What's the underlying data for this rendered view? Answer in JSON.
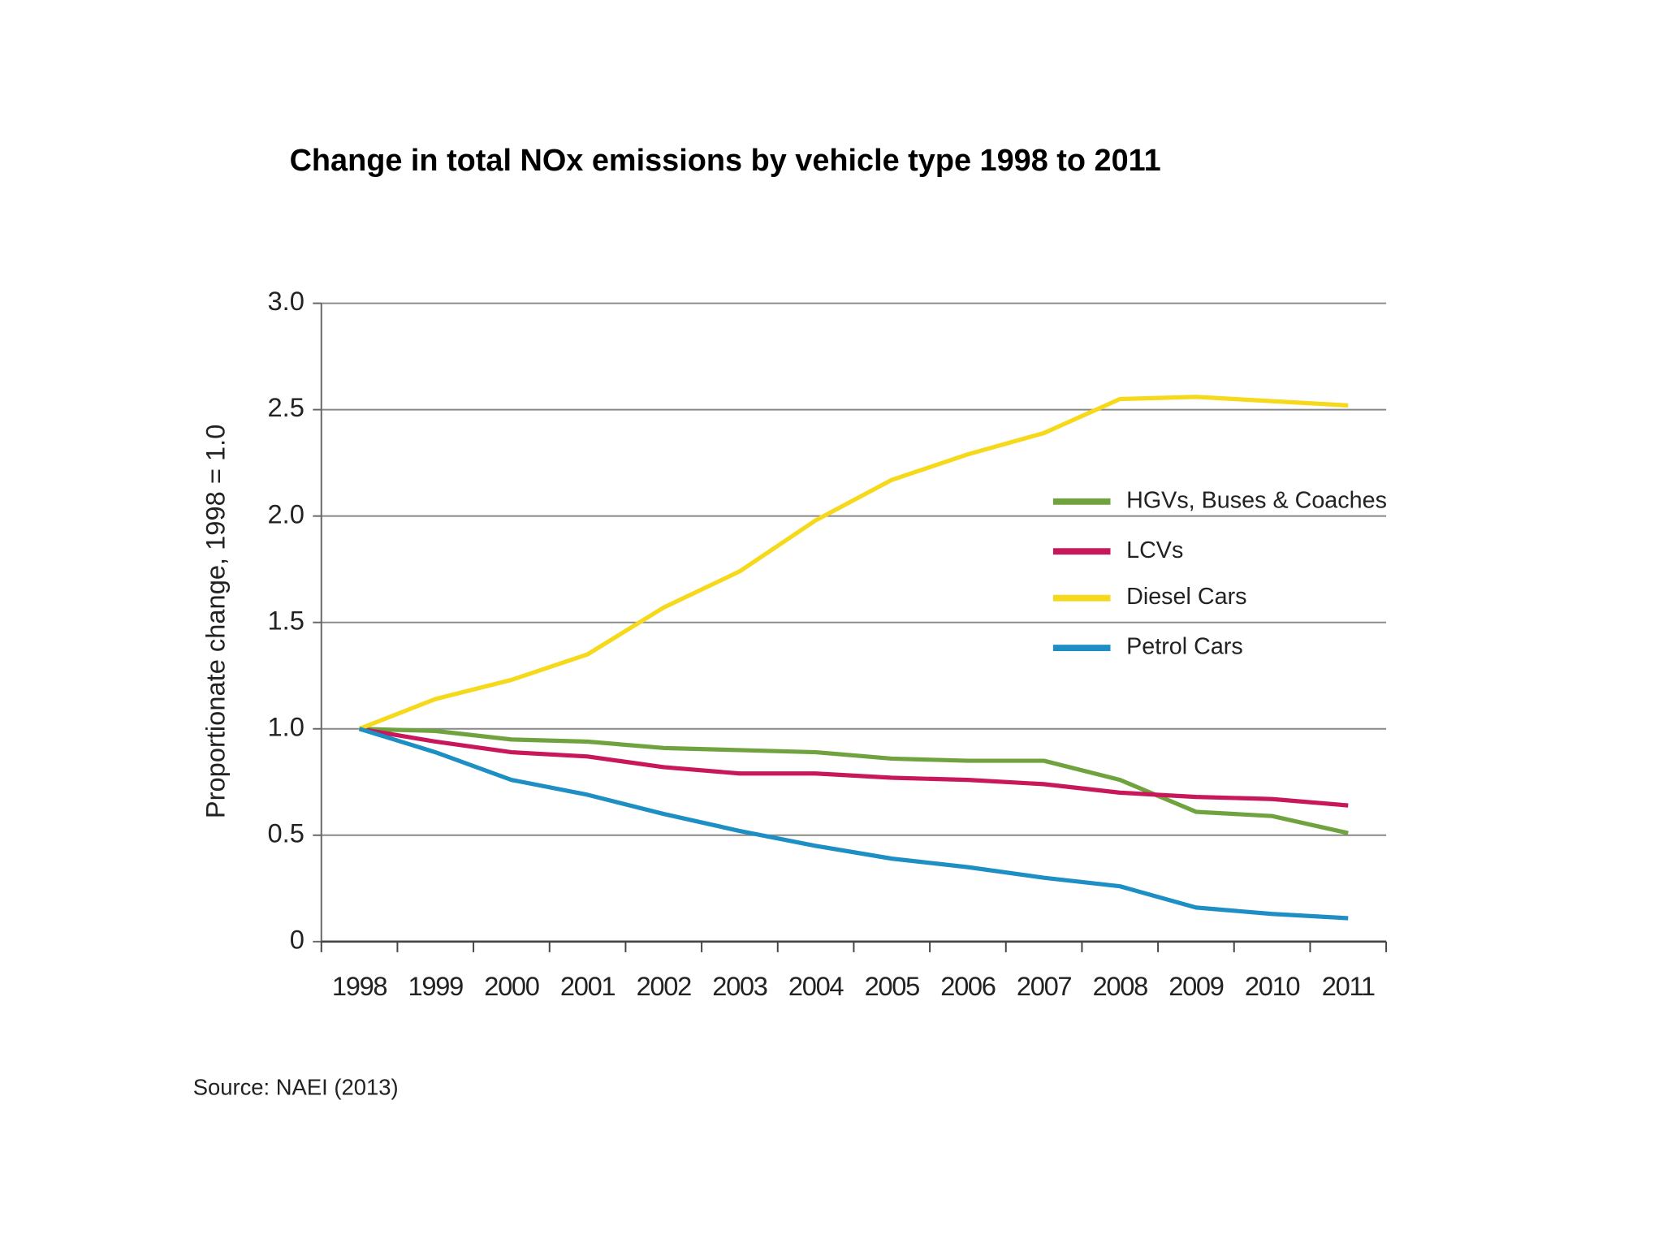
{
  "chart_data": {
    "type": "line",
    "title": "Change in total NOx emissions by vehicle type 1998 to 2011",
    "y_label": "Proportionate change, 1998 = 1.0",
    "source": "Source: NAEI (2013)",
    "categories": [
      "1998",
      "1999",
      "2000",
      "2001",
      "2002",
      "2003",
      "2004",
      "2005",
      "2006",
      "2007",
      "2008",
      "2009",
      "2010",
      "2011"
    ],
    "series": [
      {
        "name": "HGVs, Buses & Coaches",
        "color": "#70a33f",
        "values": [
          1.0,
          0.99,
          0.95,
          0.94,
          0.91,
          0.9,
          0.89,
          0.86,
          0.85,
          0.85,
          0.76,
          0.61,
          0.59,
          0.51
        ]
      },
      {
        "name": "LCVs",
        "color": "#c8175a",
        "values": [
          1.0,
          0.94,
          0.89,
          0.87,
          0.82,
          0.79,
          0.79,
          0.77,
          0.76,
          0.74,
          0.7,
          0.68,
          0.67,
          0.64
        ]
      },
      {
        "name": "Diesel Cars",
        "color": "#f5d91a",
        "values": [
          1.0,
          1.14,
          1.23,
          1.35,
          1.57,
          1.74,
          1.98,
          2.17,
          2.29,
          2.39,
          2.55,
          2.56,
          2.54,
          2.52
        ]
      },
      {
        "name": "Petrol Cars",
        "color": "#1e8fc4",
        "values": [
          1.0,
          0.89,
          0.76,
          0.69,
          0.6,
          0.52,
          0.45,
          0.39,
          0.35,
          0.3,
          0.26,
          0.16,
          0.13,
          0.11
        ]
      }
    ],
    "ylim": [
      0,
      3
    ],
    "yticks": [
      0,
      {
        "value": 0.5,
        "label": "0.5"
      },
      {
        "value": 1,
        "label": "1.0"
      },
      {
        "value": 1.5,
        "label": "1.5"
      },
      {
        "value": 2,
        "label": "2.0"
      },
      {
        "value": 2.5,
        "label": "2.5"
      },
      {
        "value": 3,
        "label": "3.0"
      }
    ],
    "grid": true
  }
}
